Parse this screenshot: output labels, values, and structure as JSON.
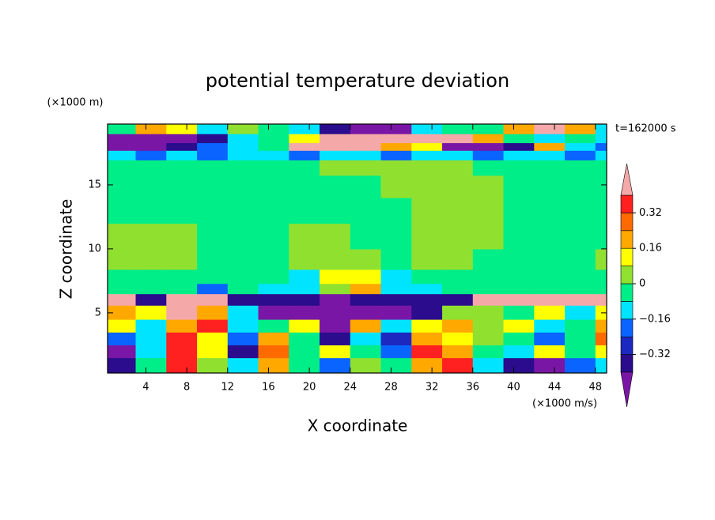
{
  "chart_data": {
    "type": "contour",
    "title": "potential temperature deviation",
    "xlabel": "X coordinate",
    "ylabel": "Z coordinate",
    "x_unit": "(×1000 m/s)",
    "y_unit": "(×1000 m)",
    "annotation": "t=162000 s",
    "xlim": [
      0.25,
      49.1
    ],
    "ylim": [
      0.3,
      19.75
    ],
    "xticks": [
      4,
      8,
      12,
      16,
      20,
      24,
      28,
      32,
      36,
      40,
      44,
      48
    ],
    "yticks": [
      5,
      10,
      15
    ],
    "x": [
      1.5,
      4.5,
      7.5,
      10.5,
      13.5,
      16.5,
      19.5,
      22.5,
      25.5,
      28.5,
      31.5,
      34.5,
      37.5,
      40.5,
      43.5,
      46.5,
      49.5
    ],
    "y": [
      1,
      2,
      3,
      4,
      5,
      6.2,
      6.8,
      7.8,
      9,
      11,
      13,
      15,
      16.5,
      17.4,
      18,
      18.6,
      19.4
    ],
    "z": [
      [
        -0.36,
        -0.04,
        0.36,
        0.04,
        -0.12,
        0.2,
        -0.04,
        -0.2,
        0.04,
        -0.04,
        0.2,
        0.36,
        -0.12,
        -0.36,
        -0.45,
        -0.2,
        -0.12
      ],
      [
        -0.45,
        -0.12,
        0.36,
        0.12,
        -0.36,
        0.28,
        -0.04,
        0.12,
        -0.04,
        -0.2,
        0.36,
        0.2,
        -0.04,
        -0.12,
        0.12,
        -0.04,
        0.12
      ],
      [
        -0.2,
        -0.12,
        0.36,
        0.12,
        -0.2,
        0.2,
        -0.04,
        -0.36,
        -0.12,
        -0.28,
        0.2,
        0.12,
        0.04,
        -0.04,
        -0.2,
        -0.04,
        0.28
      ],
      [
        0.12,
        -0.12,
        0.2,
        0.36,
        -0.12,
        -0.04,
        0.12,
        -0.45,
        0.2,
        -0.12,
        0.12,
        0.2,
        0.04,
        0.12,
        -0.12,
        -0.04,
        0.2
      ],
      [
        0.2,
        0.12,
        0.45,
        0.2,
        -0.12,
        -0.45,
        -0.45,
        -0.45,
        -0.45,
        -0.45,
        -0.36,
        0.04,
        0.04,
        -0.04,
        0.12,
        -0.12,
        0.12
      ],
      [
        0.45,
        -0.36,
        0.45,
        0.45,
        -0.36,
        -0.36,
        -0.36,
        -0.45,
        -0.36,
        -0.36,
        -0.36,
        -0.36,
        0.45,
        0.45,
        0.45,
        0.45,
        0.45
      ],
      [
        -0.04,
        -0.04,
        -0.04,
        -0.2,
        -0.04,
        -0.12,
        -0.12,
        0.04,
        0.2,
        -0.12,
        -0.12,
        -0.04,
        -0.04,
        -0.04,
        -0.04,
        -0.04,
        -0.04
      ],
      [
        -0.04,
        -0.04,
        -0.04,
        -0.04,
        -0.04,
        -0.04,
        -0.12,
        0.12,
        0.12,
        -0.12,
        -0.04,
        -0.04,
        -0.04,
        -0.04,
        -0.04,
        -0.04,
        -0.04
      ],
      [
        0.04,
        0.04,
        0.04,
        -0.04,
        -0.04,
        -0.04,
        0.04,
        0.04,
        0.04,
        -0.04,
        0.04,
        0.04,
        -0.04,
        -0.04,
        -0.04,
        -0.04,
        0.04
      ],
      [
        0.04,
        0.04,
        0.04,
        -0.04,
        -0.04,
        -0.04,
        0.04,
        0.04,
        -0.04,
        -0.04,
        0.04,
        0.04,
        0.04,
        -0.04,
        -0.04,
        -0.04,
        -0.04
      ],
      [
        -0.04,
        -0.04,
        -0.04,
        -0.04,
        -0.04,
        -0.04,
        -0.04,
        -0.04,
        -0.04,
        -0.04,
        0.04,
        0.04,
        0.04,
        -0.04,
        -0.04,
        -0.04,
        -0.04
      ],
      [
        -0.04,
        -0.04,
        -0.04,
        -0.04,
        -0.04,
        -0.04,
        -0.04,
        -0.04,
        -0.04,
        0.04,
        0.04,
        0.04,
        0.04,
        -0.04,
        -0.04,
        -0.04,
        -0.04
      ],
      [
        -0.04,
        -0.04,
        -0.04,
        -0.04,
        -0.04,
        -0.04,
        -0.04,
        0.04,
        0.04,
        0.04,
        0.04,
        0.04,
        -0.04,
        -0.04,
        -0.04,
        -0.04,
        -0.04
      ],
      [
        -0.12,
        -0.2,
        -0.12,
        -0.2,
        -0.12,
        -0.12,
        -0.2,
        -0.12,
        -0.12,
        -0.2,
        -0.12,
        -0.12,
        -0.2,
        -0.12,
        -0.12,
        -0.2,
        -0.12
      ],
      [
        -0.45,
        -0.45,
        -0.36,
        -0.2,
        -0.12,
        -0.04,
        0.45,
        0.45,
        0.45,
        0.2,
        0.12,
        -0.45,
        -0.45,
        -0.36,
        0.2,
        -0.12,
        -0.2
      ],
      [
        -0.45,
        -0.45,
        -0.45,
        -0.36,
        -0.12,
        -0.04,
        0.12,
        0.45,
        0.45,
        0.45,
        0.45,
        0.45,
        0.2,
        -0.04,
        -0.12,
        -0.04,
        -0.12
      ],
      [
        -0.04,
        0.2,
        0.12,
        -0.12,
        0.04,
        -0.04,
        -0.12,
        -0.36,
        -0.45,
        -0.45,
        -0.12,
        -0.04,
        -0.04,
        0.2,
        0.45,
        0.2,
        -0.12
      ]
    ],
    "colorbar": {
      "levels": [
        -0.4,
        -0.32,
        -0.24,
        -0.16,
        -0.08,
        0,
        0.08,
        0.16,
        0.24,
        0.32,
        0.4
      ],
      "colors": [
        "#7a16a6",
        "#2a0c8c",
        "#1c28c0",
        "#0a64ff",
        "#00e4ff",
        "#00ee88",
        "#90e030",
        "#ffff00",
        "#ffa800",
        "#ff6a00",
        "#ff2020",
        "#f5a8a8"
      ],
      "ticks": [
        0.32,
        0.16,
        0,
        {
          "value": -0.16,
          "label": "−0.16"
        },
        {
          "value": -0.32,
          "label": "−0.32"
        }
      ]
    }
  }
}
